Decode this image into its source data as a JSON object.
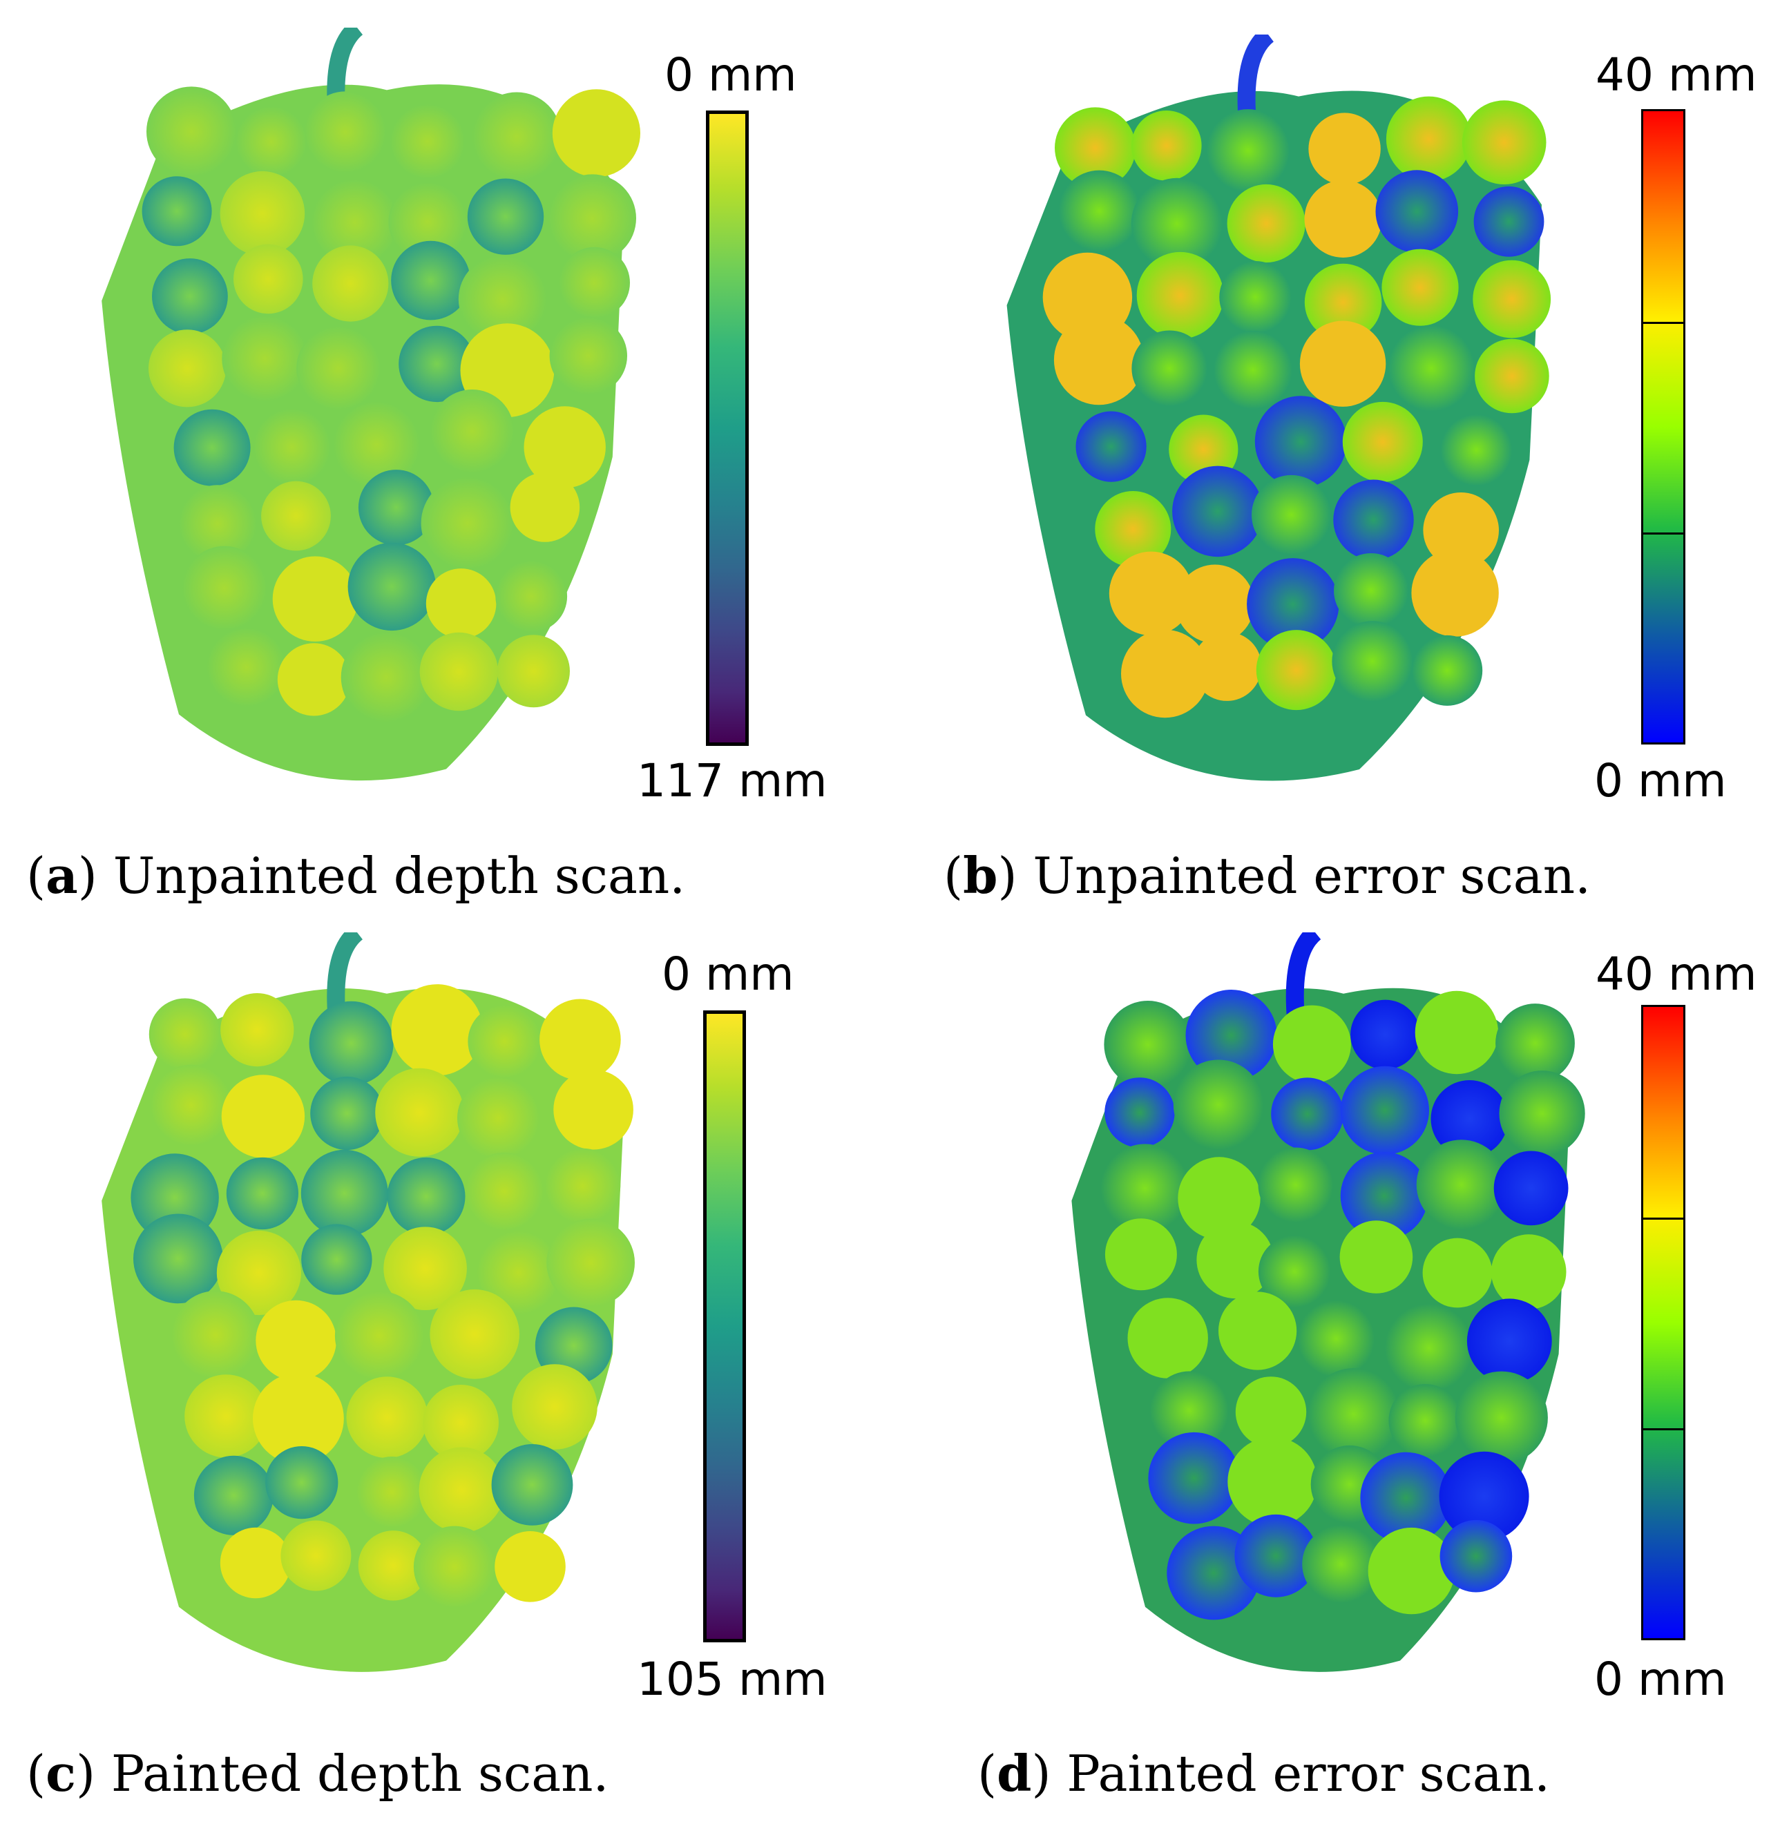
{
  "panels": [
    {
      "letter": "a",
      "caption": "Unpainted depth scan.",
      "colorbar": {
        "colormap": "viridis",
        "top_label": "0 mm",
        "bottom_label": "117 mm"
      },
      "scan_palette": [
        "#2f9e87",
        "#79d151",
        "#a7db34",
        "#d4e220"
      ]
    },
    {
      "letter": "b",
      "caption": "Unpainted error scan.",
      "colorbar": {
        "colormap": "jet",
        "top_label": "40 mm",
        "bottom_label": "0 mm"
      },
      "scan_palette": [
        "#1f3ee0",
        "#2aa06a",
        "#7fe21c",
        "#f0c020"
      ]
    },
    {
      "letter": "c",
      "caption": "Painted depth scan.",
      "colorbar": {
        "colormap": "viridis",
        "top_label": "0 mm",
        "bottom_label": "105 mm"
      },
      "scan_palette": [
        "#2f9e87",
        "#86d549",
        "#b8de29",
        "#e4e41c"
      ]
    },
    {
      "letter": "d",
      "caption": "Painted error scan.",
      "colorbar": {
        "colormap": "jet",
        "top_label": "40 mm",
        "bottom_label": "0 mm"
      },
      "scan_palette": [
        "#0a1ee8",
        "#1b3cf0",
        "#2fa05a",
        "#80e020"
      ]
    }
  ]
}
